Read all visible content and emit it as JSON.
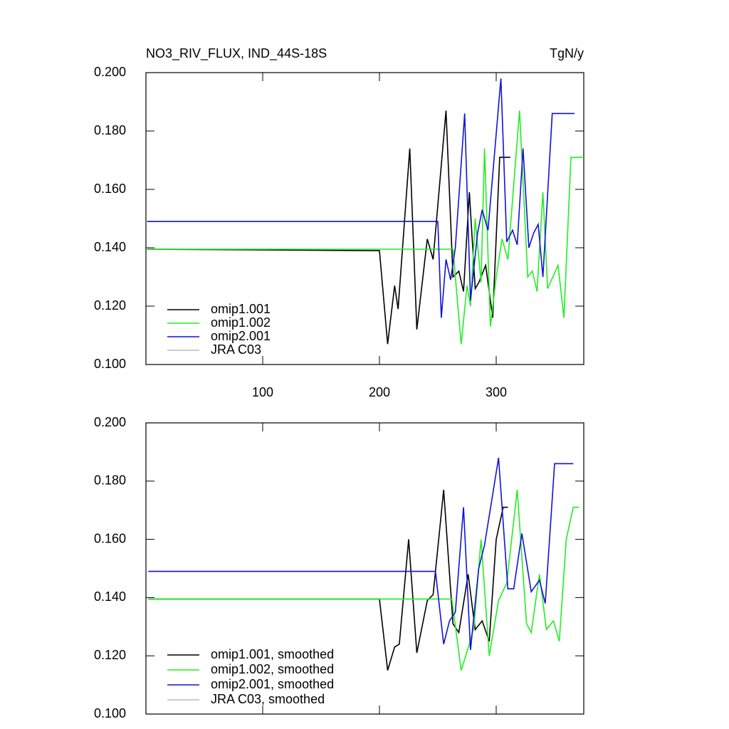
{
  "chart_data": [
    {
      "type": "line",
      "title": "NO3_RIV_FLUX, IND_44S-18S",
      "units": "TgN/y",
      "xlim": [
        0,
        375
      ],
      "xticks": [
        100,
        200,
        300
      ],
      "xtick_labels": true,
      "ylim": [
        0.1,
        0.2
      ],
      "yticks": [
        {
          "value": 0.1,
          "label": "0.100"
        },
        {
          "value": 0.12,
          "label": "0.120"
        },
        {
          "value": 0.14,
          "label": "0.140"
        },
        {
          "value": 0.16,
          "label": "0.160"
        },
        {
          "value": 0.18,
          "label": "0.180"
        },
        {
          "value": 0.2,
          "label": "0.200"
        }
      ],
      "legend": "lower left",
      "series": [
        {
          "name": "omip1.001",
          "color": "#000000",
          "x": [
            1,
            200,
            207,
            213,
            216,
            226,
            232,
            241,
            246,
            257,
            263,
            268,
            272,
            277,
            282,
            285,
            291,
            297,
            303,
            312
          ],
          "values": [
            0.1395,
            0.139,
            0.107,
            0.127,
            0.119,
            0.174,
            0.112,
            0.143,
            0.136,
            0.187,
            0.13,
            0.132,
            0.125,
            0.159,
            0.126,
            0.128,
            0.134,
            0.116,
            0.171,
            0.171
          ]
        },
        {
          "name": "omip1.002",
          "color": "#22ee22",
          "x": [
            1,
            263,
            265,
            270,
            275,
            278,
            282,
            287,
            290,
            295,
            300,
            305,
            310,
            320,
            327,
            331,
            335,
            340,
            344,
            353,
            358,
            364,
            375
          ],
          "values": [
            0.1395,
            0.1395,
            0.13,
            0.107,
            0.127,
            0.12,
            0.15,
            0.128,
            0.174,
            0.113,
            0.13,
            0.143,
            0.136,
            0.187,
            0.13,
            0.132,
            0.125,
            0.159,
            0.126,
            0.134,
            0.116,
            0.171,
            0.171
          ]
        },
        {
          "name": "omip2.001",
          "color": "#1111dd",
          "x": [
            1,
            250,
            253,
            257,
            261,
            265,
            273,
            278,
            284,
            288,
            293,
            304,
            309,
            314,
            318,
            323,
            328,
            332,
            336,
            340,
            348,
            367
          ],
          "values": [
            0.149,
            0.149,
            0.116,
            0.136,
            0.129,
            0.14,
            0.186,
            0.122,
            0.145,
            0.153,
            0.146,
            0.198,
            0.142,
            0.146,
            0.141,
            0.174,
            0.14,
            0.145,
            0.148,
            0.13,
            0.186,
            0.186
          ]
        },
        {
          "name": "JRA C03",
          "color": "#bbbbbb",
          "x": [],
          "values": []
        }
      ]
    },
    {
      "type": "line",
      "xlim": [
        0,
        375
      ],
      "xticks": [
        100,
        200,
        300
      ],
      "xtick_labels": false,
      "ylim": [
        0.1,
        0.2
      ],
      "yticks": [
        {
          "value": 0.1,
          "label": "0.100"
        },
        {
          "value": 0.12,
          "label": "0.120"
        },
        {
          "value": 0.14,
          "label": "0.140"
        },
        {
          "value": 0.16,
          "label": "0.160"
        },
        {
          "value": 0.18,
          "label": "0.180"
        },
        {
          "value": 0.2,
          "label": "0.200"
        }
      ],
      "legend": "lower left",
      "series": [
        {
          "name": "omip1.001, smoothed",
          "color": "#000000",
          "x": [
            2,
            200,
            207,
            213,
            217,
            225,
            232,
            241,
            246,
            255,
            263,
            268,
            276,
            282,
            288,
            294,
            300,
            306,
            310
          ],
          "values": [
            0.1395,
            0.1395,
            0.115,
            0.123,
            0.124,
            0.16,
            0.121,
            0.139,
            0.141,
            0.177,
            0.131,
            0.128,
            0.148,
            0.129,
            0.132,
            0.125,
            0.16,
            0.171,
            0.171
          ]
        },
        {
          "name": "omip1.002, smoothed",
          "color": "#22ee22",
          "x": [
            2,
            262,
            270,
            277,
            281,
            287,
            294,
            302,
            309,
            318,
            326,
            330,
            337,
            343,
            349,
            354,
            360,
            366,
            371
          ],
          "values": [
            0.1395,
            0.1395,
            0.115,
            0.124,
            0.13,
            0.16,
            0.12,
            0.139,
            0.145,
            0.177,
            0.131,
            0.128,
            0.148,
            0.129,
            0.132,
            0.125,
            0.16,
            0.171,
            0.171
          ]
        },
        {
          "name": "omip2.001, smoothed",
          "color": "#1111dd",
          "x": [
            2,
            248,
            255,
            260,
            265,
            272,
            278,
            285,
            290,
            302,
            310,
            315,
            322,
            330,
            337,
            342,
            350,
            366
          ],
          "values": [
            0.149,
            0.149,
            0.124,
            0.132,
            0.135,
            0.171,
            0.122,
            0.15,
            0.158,
            0.188,
            0.143,
            0.143,
            0.162,
            0.142,
            0.146,
            0.138,
            0.186,
            0.186
          ]
        },
        {
          "name": "JRA C03, smoothed",
          "color": "#bbbbbb",
          "x": [],
          "values": []
        }
      ]
    }
  ]
}
